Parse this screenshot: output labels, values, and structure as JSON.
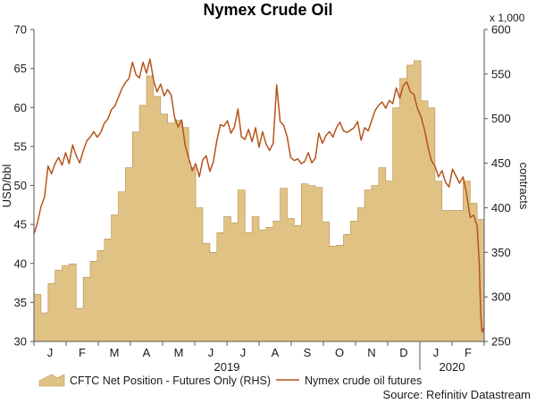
{
  "chart_data": {
    "type": "area+line",
    "title": "Nymex Crude Oil",
    "left_axis": {
      "label": "USD/bbl",
      "min": 30,
      "max": 70,
      "ticks": [
        30,
        35,
        40,
        45,
        50,
        55,
        60,
        65,
        70
      ]
    },
    "right_axis": {
      "label": "contracts",
      "unit_note": "x 1,000",
      "min": 250,
      "max": 600,
      "ticks": [
        250,
        300,
        350,
        400,
        450,
        500,
        550,
        600
      ]
    },
    "x_axis": {
      "months": [
        "J",
        "F",
        "M",
        "A",
        "M",
        "J",
        "J",
        "A",
        "S",
        "O",
        "N",
        "D",
        "J",
        "F"
      ],
      "years": [
        "2019",
        "2020"
      ]
    },
    "colors": {
      "area": "#e1c285",
      "area_edge": "#b89050",
      "line": "#b5541a",
      "axis": "#555555"
    },
    "series": [
      {
        "name": "CFTC Net Position - Futures Only (RHS)",
        "axis": "right",
        "kind": "area",
        "values": [
          [
            0,
            303
          ],
          [
            1,
            303
          ],
          [
            1,
            282
          ],
          [
            2,
            282
          ],
          [
            2,
            315
          ],
          [
            3,
            315
          ],
          [
            3,
            330
          ],
          [
            4,
            330
          ],
          [
            4,
            335
          ],
          [
            5,
            335
          ],
          [
            5,
            337
          ],
          [
            6,
            337
          ],
          [
            6,
            287
          ],
          [
            7,
            287
          ],
          [
            7,
            322
          ],
          [
            8,
            322
          ],
          [
            8,
            340
          ],
          [
            9,
            340
          ],
          [
            9,
            352
          ],
          [
            10,
            352
          ],
          [
            10,
            365
          ],
          [
            11,
            365
          ],
          [
            11,
            392
          ],
          [
            12,
            392
          ],
          [
            12,
            418
          ],
          [
            13,
            418
          ],
          [
            13,
            445
          ],
          [
            14,
            445
          ],
          [
            14,
            485
          ],
          [
            15,
            485
          ],
          [
            15,
            515
          ],
          [
            16,
            515
          ],
          [
            16,
            548
          ],
          [
            17,
            548
          ],
          [
            17,
            525
          ],
          [
            18,
            525
          ],
          [
            18,
            505
          ],
          [
            19,
            505
          ],
          [
            19,
            495
          ],
          [
            20,
            495
          ],
          [
            20,
            498
          ],
          [
            21,
            498
          ],
          [
            21,
            490
          ],
          [
            22,
            490
          ],
          [
            22,
            445
          ],
          [
            23,
            445
          ],
          [
            23,
            400
          ],
          [
            24,
            400
          ],
          [
            24,
            360
          ],
          [
            25,
            360
          ],
          [
            25,
            350
          ],
          [
            26,
            350
          ],
          [
            26,
            372
          ],
          [
            27,
            372
          ],
          [
            27,
            390
          ],
          [
            28,
            390
          ],
          [
            28,
            383
          ],
          [
            29,
            383
          ],
          [
            29,
            420
          ],
          [
            30,
            420
          ],
          [
            30,
            372
          ],
          [
            31,
            372
          ],
          [
            31,
            390
          ],
          [
            32,
            390
          ],
          [
            32,
            375
          ],
          [
            33,
            375
          ],
          [
            33,
            378
          ],
          [
            34,
            378
          ],
          [
            34,
            385
          ],
          [
            35,
            385
          ],
          [
            35,
            422
          ],
          [
            36,
            422
          ],
          [
            36,
            388
          ],
          [
            37,
            388
          ],
          [
            37,
            380
          ],
          [
            38,
            380
          ],
          [
            38,
            427
          ],
          [
            39,
            427
          ],
          [
            39,
            425
          ],
          [
            40,
            425
          ],
          [
            40,
            423
          ],
          [
            41,
            423
          ],
          [
            41,
            384
          ],
          [
            42,
            384
          ],
          [
            42,
            357
          ],
          [
            43,
            357
          ],
          [
            43,
            358
          ],
          [
            44,
            358
          ],
          [
            44,
            370
          ],
          [
            45,
            370
          ],
          [
            45,
            385
          ],
          [
            46,
            385
          ],
          [
            46,
            400
          ],
          [
            47,
            400
          ],
          [
            47,
            420
          ],
          [
            48,
            420
          ],
          [
            48,
            425
          ],
          [
            49,
            425
          ],
          [
            49,
            445
          ],
          [
            50,
            445
          ],
          [
            50,
            430
          ],
          [
            51,
            430
          ],
          [
            51,
            512
          ],
          [
            52,
            512
          ],
          [
            52,
            545
          ],
          [
            53,
            545
          ],
          [
            53,
            560
          ],
          [
            54,
            560
          ],
          [
            54,
            565
          ],
          [
            55,
            565
          ],
          [
            55,
            520
          ],
          [
            56,
            520
          ],
          [
            56,
            512
          ],
          [
            57,
            512
          ],
          [
            57,
            430
          ],
          [
            58,
            430
          ],
          [
            58,
            397
          ],
          [
            59,
            397
          ],
          [
            59,
            397
          ],
          [
            60,
            397
          ],
          [
            60,
            397
          ],
          [
            61,
            397
          ],
          [
            61,
            430
          ],
          [
            62,
            430
          ],
          [
            62,
            405
          ],
          [
            63,
            405
          ],
          [
            63,
            387
          ],
          [
            64,
            387
          ]
        ]
      },
      {
        "name": "Nymex crude oil futures",
        "axis": "left",
        "kind": "line",
        "values": [
          [
            0,
            43.8
          ],
          [
            0.5,
            45.2
          ],
          [
            1,
            47.3
          ],
          [
            1.5,
            48.5
          ],
          [
            2,
            52.5
          ],
          [
            2.5,
            51.5
          ],
          [
            3,
            52.8
          ],
          [
            3.5,
            53.6
          ],
          [
            4,
            52.6
          ],
          [
            4.5,
            54.2
          ],
          [
            5,
            52.8
          ],
          [
            5.5,
            55.2
          ],
          [
            6,
            53.8
          ],
          [
            6.5,
            52.9
          ],
          [
            7,
            54.4
          ],
          [
            7.5,
            55.7
          ],
          [
            8,
            56.2
          ],
          [
            8.5,
            56.9
          ],
          [
            9,
            56.2
          ],
          [
            9.5,
            56.8
          ],
          [
            10,
            58.0
          ],
          [
            10.5,
            58.5
          ],
          [
            11,
            59.7
          ],
          [
            11.5,
            60.2
          ],
          [
            12,
            61.3
          ],
          [
            12.5,
            62.4
          ],
          [
            13,
            63.2
          ],
          [
            13.5,
            63.7
          ],
          [
            14,
            65.8
          ],
          [
            14.5,
            64.2
          ],
          [
            15,
            63.8
          ],
          [
            15.5,
            65.8
          ],
          [
            16,
            64.4
          ],
          [
            16.5,
            66.2
          ],
          [
            17,
            63.5
          ],
          [
            17.5,
            62.0
          ],
          [
            18,
            63.0
          ],
          [
            18.5,
            61.5
          ],
          [
            19,
            62.3
          ],
          [
            19.5,
            61.6
          ],
          [
            20,
            58.7
          ],
          [
            20.5,
            57.5
          ],
          [
            21,
            58.4
          ],
          [
            21.5,
            55.1
          ],
          [
            22,
            53.5
          ],
          [
            22.5,
            51.9
          ],
          [
            23,
            52.8
          ],
          [
            23.5,
            51.1
          ],
          [
            24,
            53.3
          ],
          [
            24.5,
            53.8
          ],
          [
            25,
            51.8
          ],
          [
            25.5,
            53.0
          ],
          [
            26,
            55.8
          ],
          [
            26.5,
            57.8
          ],
          [
            27,
            57.6
          ],
          [
            27.5,
            58.3
          ],
          [
            28,
            56.7
          ],
          [
            28.5,
            57.5
          ],
          [
            29,
            59.8
          ],
          [
            29.5,
            56.2
          ],
          [
            30,
            55.9
          ],
          [
            30.5,
            57.2
          ],
          [
            31,
            55.6
          ],
          [
            31.5,
            57.4
          ],
          [
            32,
            54.9
          ],
          [
            32.5,
            56.9
          ],
          [
            33,
            55.3
          ],
          [
            33.5,
            54.5
          ],
          [
            34,
            55.4
          ],
          [
            34.5,
            62.9
          ],
          [
            35,
            58.2
          ],
          [
            35.5,
            57.7
          ],
          [
            36,
            56.2
          ],
          [
            36.5,
            53.6
          ],
          [
            37,
            53.2
          ],
          [
            37.5,
            53.4
          ],
          [
            38,
            52.8
          ],
          [
            38.5,
            53.1
          ],
          [
            39,
            54.2
          ],
          [
            39.5,
            52.9
          ],
          [
            40,
            53.5
          ],
          [
            40.5,
            56.7
          ],
          [
            41,
            55.4
          ],
          [
            41.5,
            56.4
          ],
          [
            42,
            56.9
          ],
          [
            42.5,
            56.2
          ],
          [
            43,
            57.4
          ],
          [
            43.5,
            58.1
          ],
          [
            44,
            57.0
          ],
          [
            44.5,
            56.8
          ],
          [
            45,
            57.1
          ],
          [
            45.5,
            57.4
          ],
          [
            46,
            58.2
          ],
          [
            46.5,
            55.8
          ],
          [
            47,
            57.4
          ],
          [
            47.5,
            57.0
          ],
          [
            48,
            58.3
          ],
          [
            48.5,
            59.6
          ],
          [
            49,
            60.3
          ],
          [
            49.5,
            60.7
          ],
          [
            50,
            59.9
          ],
          [
            50.5,
            60.9
          ],
          [
            51,
            60.5
          ],
          [
            51.5,
            62.5
          ],
          [
            52,
            61.2
          ],
          [
            52.5,
            62.8
          ],
          [
            53,
            63.3
          ],
          [
            53.5,
            62.0
          ],
          [
            54,
            61.7
          ],
          [
            54.5,
            59.9
          ],
          [
            55,
            58.9
          ],
          [
            55.5,
            57.2
          ],
          [
            56,
            55.0
          ],
          [
            56.5,
            53.2
          ],
          [
            57,
            52.5
          ],
          [
            57.5,
            51.1
          ],
          [
            58,
            51.9
          ],
          [
            58.5,
            50.4
          ],
          [
            59,
            49.8
          ],
          [
            59.5,
            52.1
          ],
          [
            60,
            51.2
          ],
          [
            60.5,
            50.3
          ],
          [
            61,
            51.1
          ],
          [
            61.5,
            48.9
          ],
          [
            62,
            45.9
          ],
          [
            62.5,
            46.2
          ],
          [
            63,
            44.8
          ],
          [
            63.3,
            40.0
          ],
          [
            63.5,
            33.5
          ],
          [
            63.7,
            31.2
          ],
          [
            64,
            31.8
          ]
        ]
      }
    ],
    "legend": [
      "CFTC Net Position - Futures Only (RHS)",
      "Nymex crude oil futures"
    ],
    "legend_position": "bottom",
    "grid": false
  },
  "source": "Source: Refinitiv Datastream"
}
